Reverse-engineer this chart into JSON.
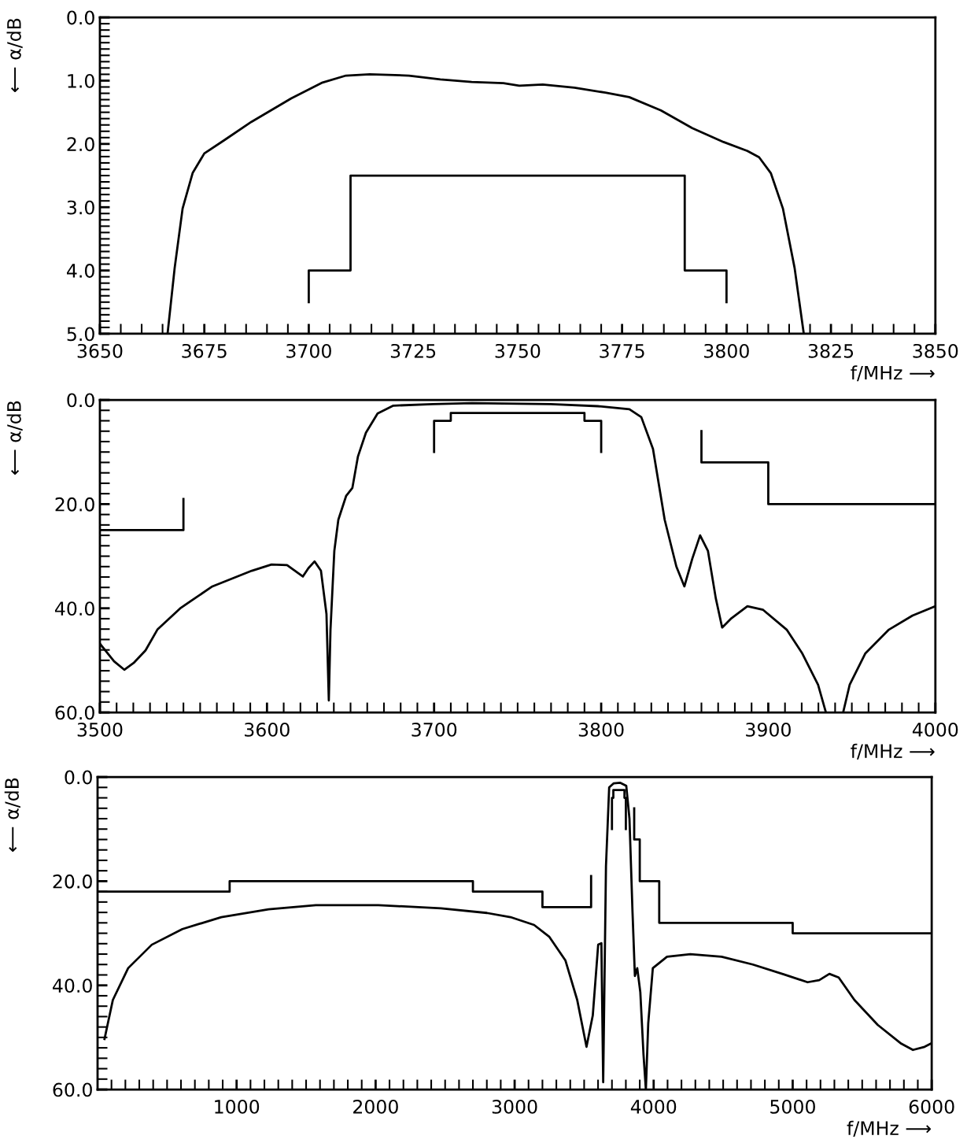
{
  "chart_data": [
    {
      "type": "line",
      "xlabel": "f/MHz ⟶",
      "ylabel": "⟵ α/dB",
      "xlim": [
        3650,
        3850
      ],
      "ylim": [
        5,
        0
      ],
      "xticks": [
        3650,
        {
          "value": 3655,
          "label": null
        },
        {
          "value": 3660,
          "label": null
        },
        {
          "value": 3665,
          "label": null
        },
        {
          "value": 3670,
          "label": null
        },
        3675,
        {
          "value": 3680,
          "label": null
        },
        {
          "value": 3685,
          "label": null
        },
        {
          "value": 3690,
          "label": null
        },
        {
          "value": 3695,
          "label": null
        },
        3700,
        {
          "value": 3705,
          "label": null
        },
        {
          "value": 3710,
          "label": null
        },
        {
          "value": 3715,
          "label": null
        },
        {
          "value": 3720,
          "label": null
        },
        3725,
        {
          "value": 3730,
          "label": null
        },
        {
          "value": 3735,
          "label": null
        },
        {
          "value": 3740,
          "label": null
        },
        {
          "value": 3745,
          "label": null
        },
        3750,
        {
          "value": 3755,
          "label": null
        },
        {
          "value": 3760,
          "label": null
        },
        {
          "value": 3765,
          "label": null
        },
        {
          "value": 3770,
          "label": null
        },
        3775,
        {
          "value": 3780,
          "label": null
        },
        {
          "value": 3785,
          "label": null
        },
        {
          "value": 3790,
          "label": null
        },
        {
          "value": 3795,
          "label": null
        },
        3800,
        {
          "value": 3805,
          "label": null
        },
        {
          "value": 3810,
          "label": null
        },
        {
          "value": 3815,
          "label": null
        },
        {
          "value": 3820,
          "label": null
        },
        3825,
        {
          "value": 3830,
          "label": null
        },
        {
          "value": 3835,
          "label": null
        },
        {
          "value": 3840,
          "label": null
        },
        {
          "value": 3845,
          "label": null
        },
        3850
      ],
      "yticks": [
        {
          "value": 0,
          "label": "0.0"
        },
        {
          "value": 0.1,
          "label": null
        },
        {
          "value": 0.2,
          "label": null
        },
        {
          "value": 0.3,
          "label": null
        },
        {
          "value": 0.4,
          "label": null
        },
        {
          "value": 0.5,
          "label": null
        },
        {
          "value": 0.6,
          "label": null
        },
        {
          "value": 0.7,
          "label": null
        },
        {
          "value": 0.8,
          "label": null
        },
        {
          "value": 0.9,
          "label": null
        },
        {
          "value": 1,
          "label": "1.0"
        },
        {
          "value": 1.1,
          "label": null
        },
        {
          "value": 1.2,
          "label": null
        },
        {
          "value": 1.3,
          "label": null
        },
        {
          "value": 1.4,
          "label": null
        },
        {
          "value": 1.5,
          "label": null
        },
        {
          "value": 1.6,
          "label": null
        },
        {
          "value": 1.7,
          "label": null
        },
        {
          "value": 1.8,
          "label": null
        },
        {
          "value": 1.9,
          "label": null
        },
        {
          "value": 2,
          "label": "2.0"
        },
        {
          "value": 2.1,
          "label": null
        },
        {
          "value": 2.2,
          "label": null
        },
        {
          "value": 2.3,
          "label": null
        },
        {
          "value": 2.4,
          "label": null
        },
        {
          "value": 2.5,
          "label": null
        },
        {
          "value": 2.6,
          "label": null
        },
        {
          "value": 2.7,
          "label": null
        },
        {
          "value": 2.8,
          "label": null
        },
        {
          "value": 2.9,
          "label": null
        },
        {
          "value": 3,
          "label": "3.0"
        },
        {
          "value": 3.1,
          "label": null
        },
        {
          "value": 3.2,
          "label": null
        },
        {
          "value": 3.3,
          "label": null
        },
        {
          "value": 3.4,
          "label": null
        },
        {
          "value": 3.5,
          "label": null
        },
        {
          "value": 3.6,
          "label": null
        },
        {
          "value": 3.7,
          "label": null
        },
        {
          "value": 3.8,
          "label": null
        },
        {
          "value": 3.9,
          "label": null
        },
        {
          "value": 4,
          "label": "4.0"
        },
        {
          "value": 4.1,
          "label": null
        },
        {
          "value": 4.2,
          "label": null
        },
        {
          "value": 4.3,
          "label": null
        },
        {
          "value": 4.4,
          "label": null
        },
        {
          "value": 4.5,
          "label": null
        },
        {
          "value": 4.6,
          "label": null
        },
        {
          "value": 4.7,
          "label": null
        },
        {
          "value": 4.8,
          "label": null
        },
        {
          "value": 4.9,
          "label": null
        },
        {
          "value": 5,
          "label": "5.0"
        }
      ],
      "series": [
        {
          "color": "#000000",
          "x": [
            3666.2,
            3667.9,
            3669.8,
            3672.2,
            3675,
            3679.8,
            3686.3,
            3695.8,
            3703.3,
            3708.9,
            3714.6,
            3724,
            3731.5,
            3739,
            3746.6,
            3750.4,
            3756,
            3763.6,
            3771,
            3776.7,
            3784.3,
            3791.8,
            3799.3,
            3805,
            3807.8,
            3810.6,
            3813.5,
            3816.3,
            3818.5
          ],
          "values": [
            5.0,
            3.96,
            3.02,
            2.46,
            2.15,
            1.94,
            1.65,
            1.28,
            1.03,
            0.92,
            0.9,
            0.92,
            0.98,
            1.02,
            1.04,
            1.08,
            1.06,
            1.11,
            1.19,
            1.26,
            1.47,
            1.75,
            1.97,
            2.11,
            2.21,
            2.46,
            3.02,
            3.96,
            5.0
          ]
        },
        {
          "color": "#000000",
          "x": [
            3700,
            3700,
            3710,
            3710,
            3790,
            3790,
            3800,
            3800
          ],
          "values": [
            4.5,
            4.0,
            4.0,
            2.5,
            2.5,
            4.0,
            4.0,
            4.5
          ]
        }
      ]
    },
    {
      "type": "line",
      "xlabel": "f/MHz ⟶",
      "ylabel": "⟵ α/dB",
      "xlim": [
        3500,
        4000
      ],
      "ylim": [
        60,
        0
      ],
      "xticks": [
        3500,
        {
          "value": 3510,
          "label": null
        },
        {
          "value": 3520,
          "label": null
        },
        {
          "value": 3530,
          "label": null
        },
        {
          "value": 3540,
          "label": null
        },
        {
          "value": 3550,
          "label": null
        },
        {
          "value": 3560,
          "label": null
        },
        {
          "value": 3570,
          "label": null
        },
        {
          "value": 3580,
          "label": null
        },
        {
          "value": 3590,
          "label": null
        },
        3600,
        {
          "value": 3610,
          "label": null
        },
        {
          "value": 3620,
          "label": null
        },
        {
          "value": 3630,
          "label": null
        },
        {
          "value": 3640,
          "label": null
        },
        {
          "value": 3650,
          "label": null
        },
        {
          "value": 3660,
          "label": null
        },
        {
          "value": 3670,
          "label": null
        },
        {
          "value": 3680,
          "label": null
        },
        {
          "value": 3690,
          "label": null
        },
        3700,
        {
          "value": 3710,
          "label": null
        },
        {
          "value": 3720,
          "label": null
        },
        {
          "value": 3730,
          "label": null
        },
        {
          "value": 3740,
          "label": null
        },
        {
          "value": 3750,
          "label": null
        },
        {
          "value": 3760,
          "label": null
        },
        {
          "value": 3770,
          "label": null
        },
        {
          "value": 3780,
          "label": null
        },
        {
          "value": 3790,
          "label": null
        },
        3800,
        {
          "value": 3810,
          "label": null
        },
        {
          "value": 3820,
          "label": null
        },
        {
          "value": 3830,
          "label": null
        },
        {
          "value": 3840,
          "label": null
        },
        {
          "value": 3850,
          "label": null
        },
        {
          "value": 3860,
          "label": null
        },
        {
          "value": 3870,
          "label": null
        },
        {
          "value": 3880,
          "label": null
        },
        {
          "value": 3890,
          "label": null
        },
        3900,
        {
          "value": 3910,
          "label": null
        },
        {
          "value": 3920,
          "label": null
        },
        {
          "value": 3930,
          "label": null
        },
        {
          "value": 3940,
          "label": null
        },
        {
          "value": 3950,
          "label": null
        },
        {
          "value": 3960,
          "label": null
        },
        {
          "value": 3970,
          "label": null
        },
        {
          "value": 3980,
          "label": null
        },
        {
          "value": 3990,
          "label": null
        },
        4000
      ],
      "yticks": [
        {
          "value": 0,
          "label": "0.0"
        },
        {
          "value": 2,
          "label": null
        },
        {
          "value": 4,
          "label": null
        },
        {
          "value": 6,
          "label": null
        },
        {
          "value": 8,
          "label": null
        },
        {
          "value": 10,
          "label": null
        },
        {
          "value": 12,
          "label": null
        },
        {
          "value": 14,
          "label": null
        },
        {
          "value": 16,
          "label": null
        },
        {
          "value": 18,
          "label": null
        },
        {
          "value": 20,
          "label": "20.0"
        },
        {
          "value": 22,
          "label": null
        },
        {
          "value": 24,
          "label": null
        },
        {
          "value": 26,
          "label": null
        },
        {
          "value": 28,
          "label": null
        },
        {
          "value": 30,
          "label": null
        },
        {
          "value": 32,
          "label": null
        },
        {
          "value": 34,
          "label": null
        },
        {
          "value": 36,
          "label": null
        },
        {
          "value": 38,
          "label": null
        },
        {
          "value": 40,
          "label": "40.0"
        },
        {
          "value": 42,
          "label": null
        },
        {
          "value": 44,
          "label": null
        },
        {
          "value": 46,
          "label": null
        },
        {
          "value": 48,
          "label": null
        },
        {
          "value": 50,
          "label": null
        },
        {
          "value": 52,
          "label": null
        },
        {
          "value": 54,
          "label": null
        },
        {
          "value": 56,
          "label": null
        },
        {
          "value": 58,
          "label": null
        },
        {
          "value": 60,
          "label": "60.0"
        }
      ],
      "series": [
        {
          "color": "#000000",
          "x": [
            3500,
            3508.5,
            3514.6,
            3520.2,
            3527.3,
            3534.4,
            3548.5,
            3567.3,
            3590.9,
            3602.7,
            3612,
            3621.5,
            3624.8,
            3628.5,
            3632.3,
            3635.6,
            3637,
            3638,
            3640.3,
            3642.7,
            3647.4,
            3651.1,
            3654.4,
            3659.2,
            3666.2,
            3675.6,
            3699.2,
            3722.7,
            3769.8,
            3798,
            3816.9,
            3824,
            3831,
            3838,
            3845,
            3849.8,
            3854.5,
            3859.2,
            3863.9,
            3868.6,
            3872.4,
            3878,
            3887.5,
            3896.9,
            3911,
            3920.4,
            3929.8,
            3934.5,
            3940,
            3944.8,
            3948.7,
            3958,
            3972.2,
            3986.3,
            4000
          ],
          "values": [
            46.8,
            50.2,
            51.8,
            50.5,
            48.1,
            44.1,
            39.9,
            35.8,
            32.8,
            31.6,
            31.7,
            33.9,
            32.3,
            31.0,
            32.8,
            41.1,
            57.7,
            44.1,
            29.0,
            23.0,
            18.4,
            16.9,
            10.9,
            6.3,
            2.6,
            1.1,
            0.8,
            0.6,
            0.8,
            1.2,
            1.8,
            3.3,
            9.4,
            23,
            32,
            35.8,
            30.5,
            26,
            29,
            38.1,
            43.7,
            41.9,
            39.6,
            40.3,
            44.1,
            48.7,
            54.7,
            60,
            null,
            60,
            54.7,
            48.7,
            44.1,
            41.4,
            39.6
          ]
        },
        {
          "color": "#000000",
          "x": [
            3500,
            3550,
            3550
          ],
          "values": [
            25,
            25,
            19
          ]
        },
        {
          "color": "#000000",
          "x": [
            3700,
            3700,
            3710,
            3710,
            3790,
            3790,
            3800,
            3800
          ],
          "values": [
            10,
            4,
            4,
            2.5,
            2.5,
            4,
            4,
            10
          ]
        },
        {
          "color": "#000000",
          "x": [
            3860,
            3860,
            3900,
            3900,
            4000
          ],
          "values": [
            6,
            12,
            12,
            20,
            20
          ]
        }
      ]
    },
    {
      "type": "line",
      "xlabel": "f/MHz ⟶",
      "ylabel": "⟵ α/dB",
      "xlim": [
        0,
        6000
      ],
      "ylim": [
        60,
        0
      ],
      "xticks": [
        {
          "value": 100,
          "label": null
        },
        {
          "value": 200,
          "label": null
        },
        {
          "value": 300,
          "label": null
        },
        {
          "value": 400,
          "label": null
        },
        {
          "value": 500,
          "label": null
        },
        {
          "value": 600,
          "label": null
        },
        {
          "value": 700,
          "label": null
        },
        {
          "value": 800,
          "label": null
        },
        {
          "value": 900,
          "label": null
        },
        1000,
        {
          "value": 1100,
          "label": null
        },
        {
          "value": 1200,
          "label": null
        },
        {
          "value": 1300,
          "label": null
        },
        {
          "value": 1400,
          "label": null
        },
        {
          "value": 1500,
          "label": null
        },
        {
          "value": 1600,
          "label": null
        },
        {
          "value": 1700,
          "label": null
        },
        {
          "value": 1800,
          "label": null
        },
        {
          "value": 1900,
          "label": null
        },
        2000,
        {
          "value": 2100,
          "label": null
        },
        {
          "value": 2200,
          "label": null
        },
        {
          "value": 2300,
          "label": null
        },
        {
          "value": 2400,
          "label": null
        },
        {
          "value": 2500,
          "label": null
        },
        {
          "value": 2600,
          "label": null
        },
        {
          "value": 2700,
          "label": null
        },
        {
          "value": 2800,
          "label": null
        },
        {
          "value": 2900,
          "label": null
        },
        3000,
        {
          "value": 3100,
          "label": null
        },
        {
          "value": 3200,
          "label": null
        },
        {
          "value": 3300,
          "label": null
        },
        {
          "value": 3400,
          "label": null
        },
        {
          "value": 3500,
          "label": null
        },
        {
          "value": 3600,
          "label": null
        },
        {
          "value": 3700,
          "label": null
        },
        {
          "value": 3800,
          "label": null
        },
        {
          "value": 3900,
          "label": null
        },
        4000,
        {
          "value": 4100,
          "label": null
        },
        {
          "value": 4200,
          "label": null
        },
        {
          "value": 4300,
          "label": null
        },
        {
          "value": 4400,
          "label": null
        },
        {
          "value": 4500,
          "label": null
        },
        {
          "value": 4600,
          "label": null
        },
        {
          "value": 4700,
          "label": null
        },
        {
          "value": 4800,
          "label": null
        },
        {
          "value": 4900,
          "label": null
        },
        5000,
        {
          "value": 5100,
          "label": null
        },
        {
          "value": 5200,
          "label": null
        },
        {
          "value": 5300,
          "label": null
        },
        {
          "value": 5400,
          "label": null
        },
        {
          "value": 5500,
          "label": null
        },
        {
          "value": 5600,
          "label": null
        },
        {
          "value": 5700,
          "label": null
        },
        {
          "value": 5800,
          "label": null
        },
        {
          "value": 5900,
          "label": null
        },
        6000
      ],
      "yticks": [
        {
          "value": 0,
          "label": "0.0"
        },
        {
          "value": 2,
          "label": null
        },
        {
          "value": 4,
          "label": null
        },
        {
          "value": 6,
          "label": null
        },
        {
          "value": 8,
          "label": null
        },
        {
          "value": 10,
          "label": null
        },
        {
          "value": 12,
          "label": null
        },
        {
          "value": 14,
          "label": null
        },
        {
          "value": 16,
          "label": null
        },
        {
          "value": 18,
          "label": null
        },
        {
          "value": 20,
          "label": "20.0"
        },
        {
          "value": 22,
          "label": null
        },
        {
          "value": 24,
          "label": null
        },
        {
          "value": 26,
          "label": null
        },
        {
          "value": 28,
          "label": null
        },
        {
          "value": 30,
          "label": null
        },
        {
          "value": 32,
          "label": null
        },
        {
          "value": 34,
          "label": null
        },
        {
          "value": 36,
          "label": null
        },
        {
          "value": 38,
          "label": null
        },
        {
          "value": 40,
          "label": "40.0"
        },
        {
          "value": 42,
          "label": null
        },
        {
          "value": 44,
          "label": null
        },
        {
          "value": 46,
          "label": null
        },
        {
          "value": 48,
          "label": null
        },
        {
          "value": 50,
          "label": null
        },
        {
          "value": 52,
          "label": null
        },
        {
          "value": 54,
          "label": null
        },
        {
          "value": 56,
          "label": null
        },
        {
          "value": 58,
          "label": null
        },
        {
          "value": 60,
          "label": "60.0"
        }
      ],
      "series": [
        {
          "color": "#000000",
          "x": [
            50,
            110,
            220,
            390,
            610,
            890,
            1230,
            1570,
            2020,
            2470,
            2800,
            2970,
            3140,
            3250,
            3365,
            3450,
            3517,
            3562,
            3601,
            3624,
            3637,
            3657,
            3680,
            3713,
            3758,
            3803,
            3826,
            3848,
            3865,
            3882,
            3904,
            3927,
            3944,
            3961,
            3994,
            4096,
            4264,
            4489,
            4713,
            4938,
            5107,
            5191,
            5264,
            5331,
            5444,
            5612,
            5781,
            5865,
            5949,
            6000
          ],
          "values": [
            50.3,
            42.8,
            36.7,
            32.2,
            29.2,
            26.9,
            25.4,
            24.6,
            24.6,
            25.2,
            26.1,
            26.9,
            28.4,
            30.7,
            35.2,
            42.8,
            51.8,
            45.8,
            32.2,
            31.9,
            58.6,
            17.1,
            2.0,
            1.2,
            1.1,
            1.7,
            8,
            26,
            38.2,
            36.7,
            41.3,
            53.3,
            60,
            47.3,
            36.7,
            34.5,
            34.0,
            34.5,
            36,
            37.9,
            39.4,
            39,
            37.8,
            38.5,
            42.8,
            47.6,
            51.2,
            52.4,
            51.8,
            51.1
          ]
        },
        {
          "color": "#000000",
          "x": [
            0,
            950,
            950,
            2700,
            2700,
            3200,
            3200,
            3550,
            3550
          ],
          "values": [
            22,
            22,
            20,
            20,
            22,
            22,
            25,
            25,
            19
          ]
        },
        {
          "color": "#000000",
          "x": [
            3700,
            3700,
            3710,
            3710,
            3790,
            3790,
            3800,
            3800
          ],
          "values": [
            10,
            4,
            4,
            2.5,
            2.5,
            4,
            4,
            10
          ]
        },
        {
          "color": "#000000",
          "x": [
            3860,
            3860,
            3900,
            3900,
            4040,
            4040,
            5000,
            5000,
            6000
          ],
          "values": [
            6,
            12,
            12,
            20,
            20,
            28,
            28,
            30,
            30
          ]
        }
      ]
    }
  ]
}
